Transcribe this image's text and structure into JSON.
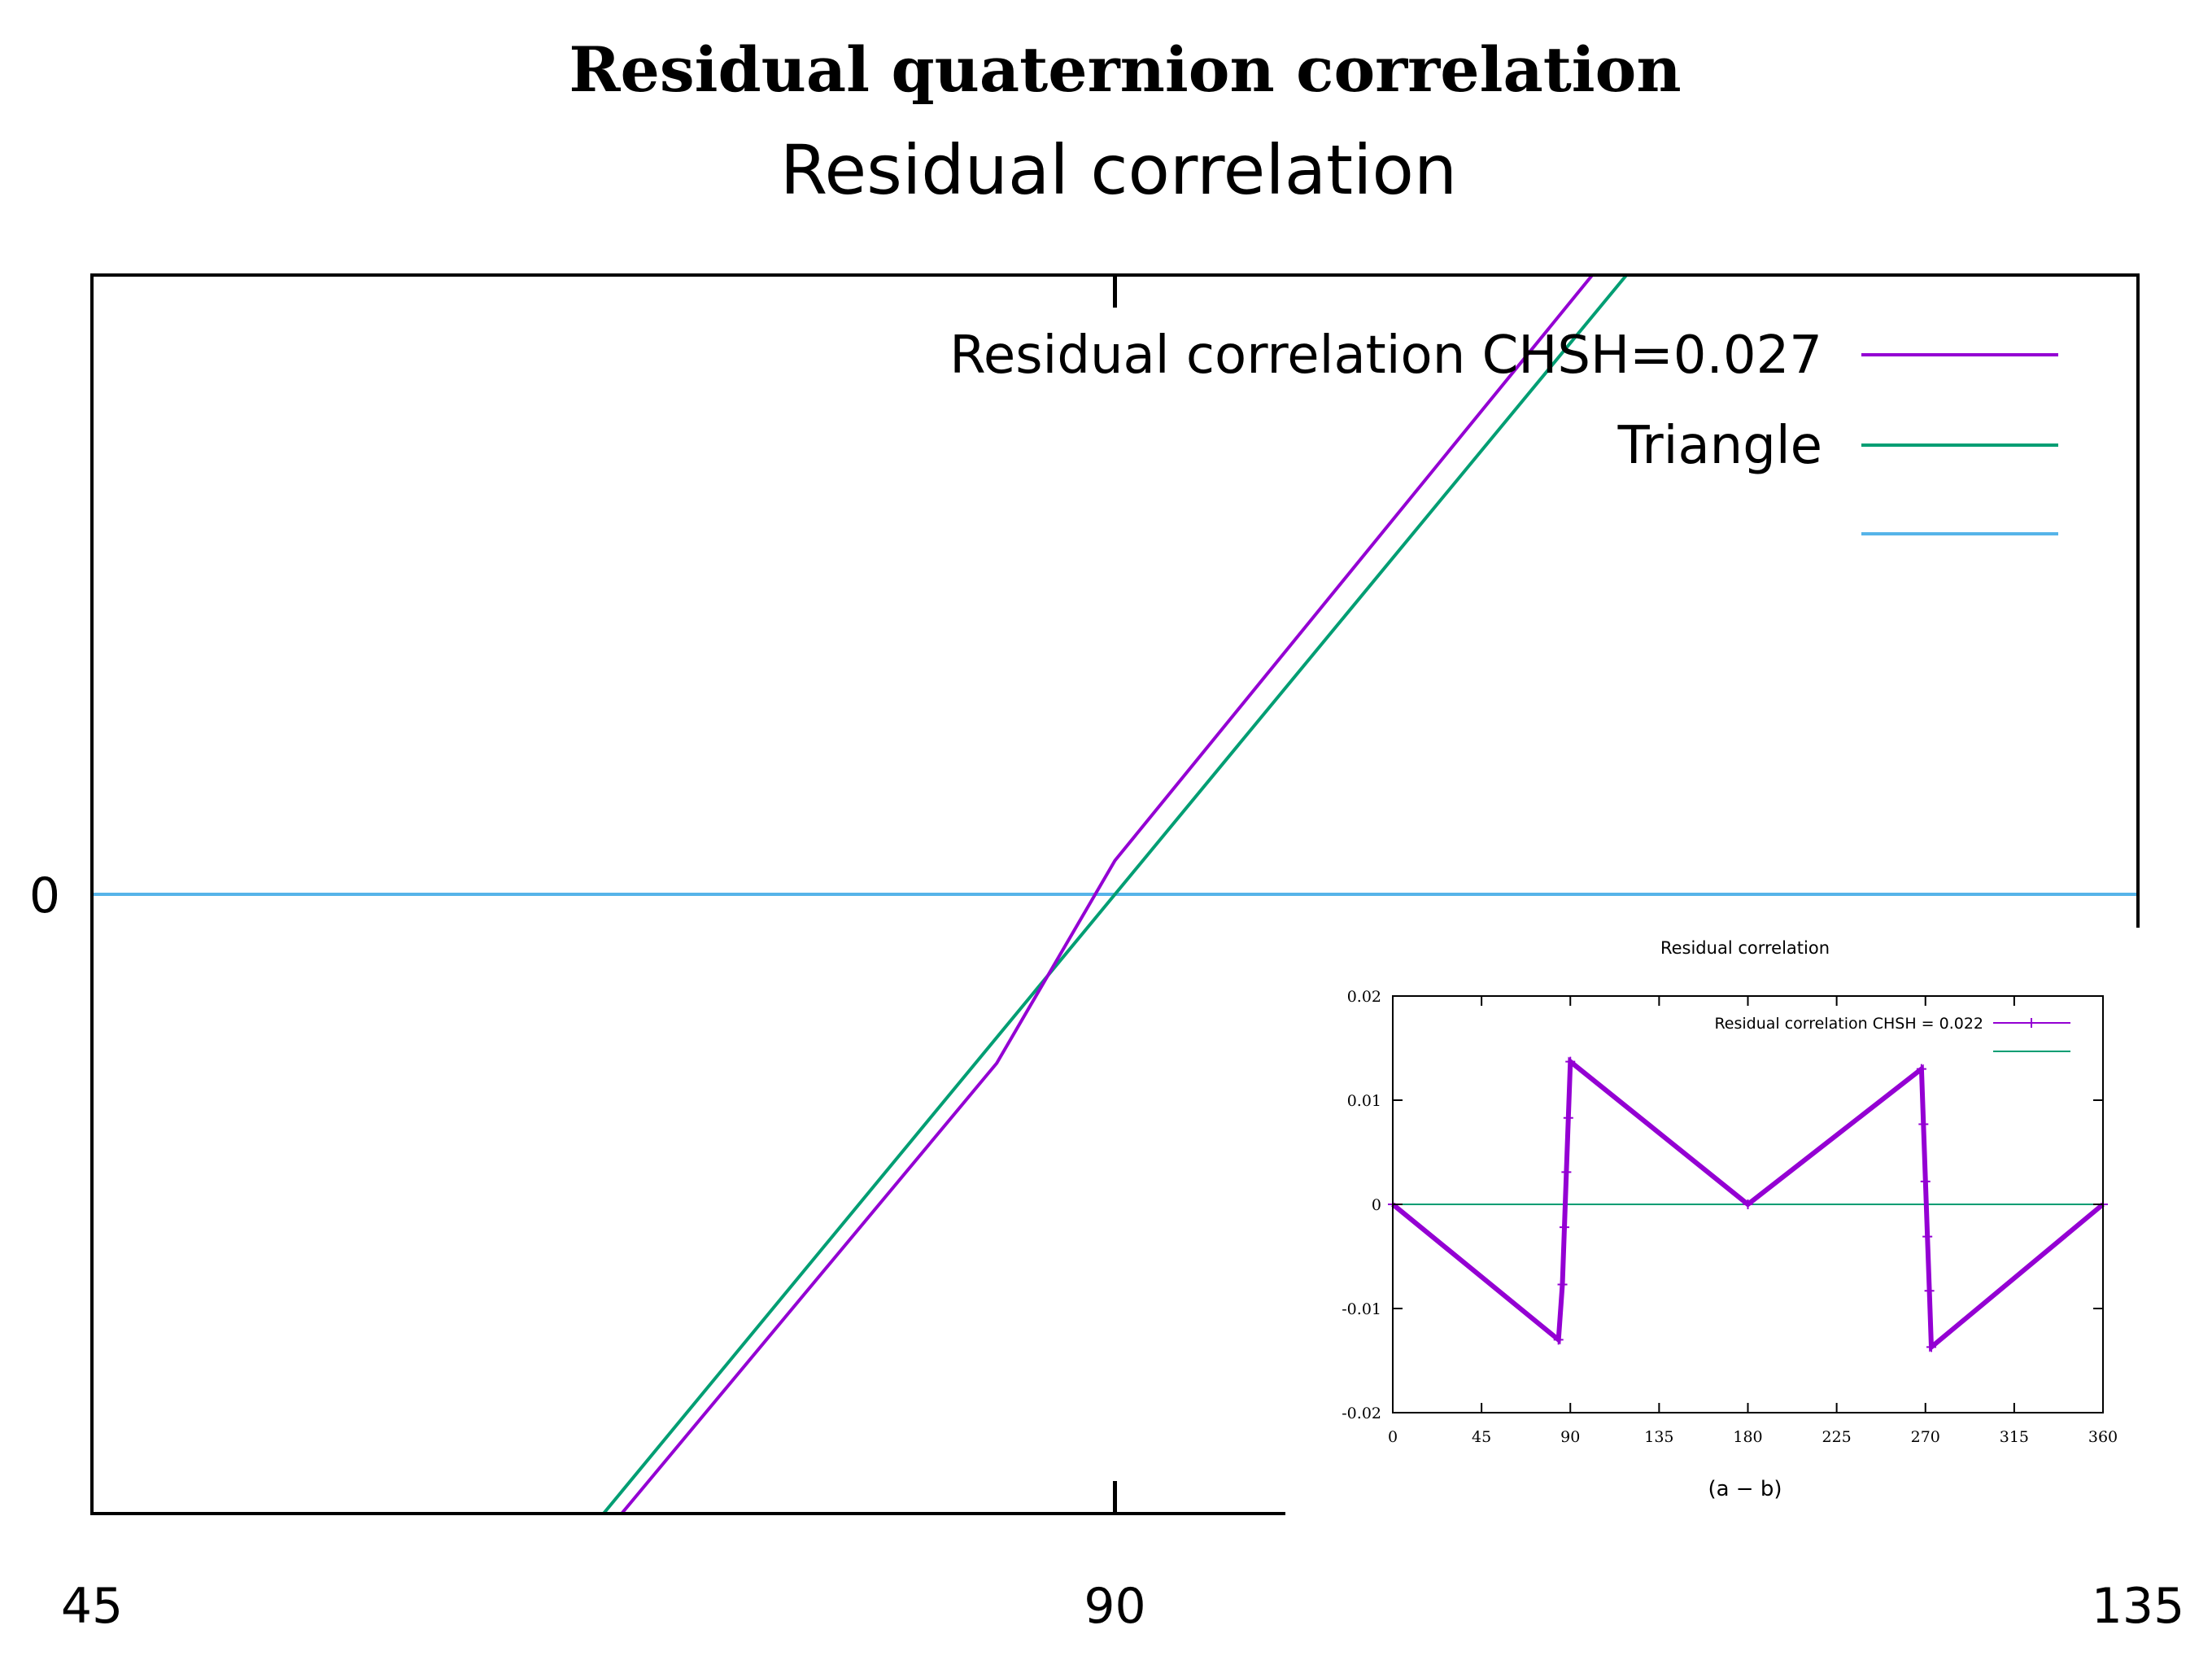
{
  "figure_title": "Residual quaternion correlation",
  "colors": {
    "residual": "#9400d3",
    "triangle": "#009e73",
    "zero": "#56b4e9",
    "axis": "#000000"
  },
  "chart_data": [
    {
      "type": "line",
      "title": "Residual correlation",
      "xlabel": "",
      "ylabel": "",
      "xlim": [
        45,
        135
      ],
      "ylim": [
        -0.022,
        0.022
      ],
      "x_ticks": [
        "45",
        "90",
        "135"
      ],
      "y_ticks": [
        "0"
      ],
      "grid": false,
      "legend_position": "top-right",
      "series": [
        {
          "name": "Residual correlation CHSH=0.027",
          "color": "#9400d3",
          "points": [
            [
              68.3,
              -0.022
            ],
            [
              84.8,
              -0.006
            ],
            [
              90,
              0.0012
            ],
            [
              111,
              0.022
            ]
          ]
        },
        {
          "name": "Triangle",
          "color": "#009e73",
          "points": [
            [
              67.5,
              -0.022
            ],
            [
              112.5,
              0.022
            ]
          ]
        },
        {
          "name": "",
          "color": "#56b4e9",
          "points": [
            [
              45,
              0
            ],
            [
              135,
              0
            ]
          ]
        }
      ]
    },
    {
      "type": "line",
      "title": "Residual correlation",
      "xlabel": "(a − b)",
      "ylabel": "",
      "xlim": [
        0,
        360
      ],
      "ylim": [
        -0.02,
        0.02
      ],
      "x_ticks": [
        "0",
        "45",
        "90",
        "135",
        "180",
        "225",
        "270",
        "315",
        "360"
      ],
      "y_ticks": [
        "0.02",
        "0.01",
        "0",
        "-0.01",
        "-0.02"
      ],
      "grid": false,
      "legend_position": "top-right",
      "series": [
        {
          "name": "Residual correlation CHSH = 0.022",
          "color": "#9400d3",
          "markers": true,
          "points": [
            [
              0,
              0
            ],
            [
              84,
              -0.013
            ],
            [
              86,
              -0.0077
            ],
            [
              87,
              -0.0022
            ],
            [
              88,
              0.0031
            ],
            [
              89,
              0.0083
            ],
            [
              90,
              0.0137
            ],
            [
              180,
              0
            ],
            [
              268,
              0.013
            ],
            [
              269,
              0.0077
            ],
            [
              270,
              0.0022
            ],
            [
              271,
              -0.0031
            ],
            [
              272,
              -0.0083
            ],
            [
              273,
              -0.0137
            ],
            [
              360,
              0
            ]
          ]
        },
        {
          "name": "",
          "color": "#009e73",
          "points": [
            [
              0,
              0
            ],
            [
              360,
              0
            ]
          ]
        }
      ]
    }
  ]
}
